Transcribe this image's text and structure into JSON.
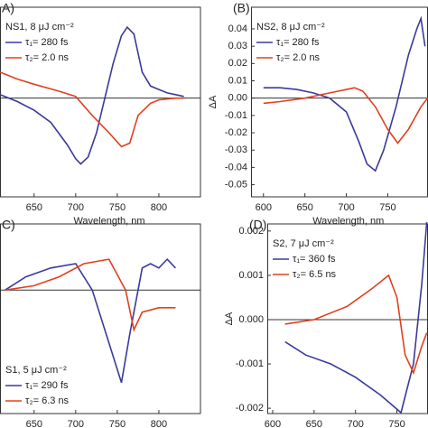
{
  "chart_data": [
    {
      "type": "line",
      "panel_label": "A)",
      "annotation": "NS1, 8 μJ cm⁻²",
      "xlabel": "Wavelength, nm",
      "legend": "upper left",
      "xlim": [
        609,
        850
      ],
      "ylim": [
        -0.057,
        0.0525
      ],
      "xticks": [
        650,
        700,
        750,
        800
      ],
      "series": [
        {
          "name": "τ₁= 280 fs",
          "color": "#3a3a9c",
          "x": [
            609,
            630,
            650,
            670,
            690,
            700,
            706,
            715,
            725,
            735,
            745,
            755,
            762,
            770,
            780,
            790,
            800,
            810,
            820,
            830
          ],
          "values": [
            0.002,
            -0.002,
            -0.007,
            -0.014,
            -0.027,
            -0.035,
            -0.038,
            -0.034,
            -0.02,
            0.0,
            0.02,
            0.036,
            0.041,
            0.037,
            0.015,
            0.007,
            0.005,
            0.003,
            0.002,
            0.001
          ]
        },
        {
          "name": "τ₂= 2.0 ns",
          "color": "#e0401e",
          "x": [
            609,
            630,
            650,
            680,
            700,
            720,
            740,
            755,
            765,
            775,
            790,
            800,
            820,
            830
          ],
          "values": [
            0.015,
            0.011,
            0.008,
            0.004,
            0.001,
            -0.01,
            -0.02,
            -0.028,
            -0.026,
            -0.01,
            -0.003,
            -0.001,
            0.0,
            0.0
          ]
        }
      ]
    },
    {
      "type": "line",
      "panel_label": "(B)",
      "annotation": "NS2, 8 μJ cm⁻²",
      "xlabel": "Wavelength, nm",
      "ylabel": "ΔA",
      "legend": "upper left",
      "xlim": [
        585,
        798
      ],
      "ylim": [
        -0.057,
        0.0525
      ],
      "xticks": [
        600,
        650,
        700,
        750
      ],
      "yticks": [
        -0.05,
        -0.04,
        -0.03,
        -0.02,
        -0.01,
        {
          "value": 0,
          "label": "0.00"
        },
        0.01,
        0.02,
        0.03,
        0.04
      ],
      "series": [
        {
          "name": "τ₁= 280 fs",
          "color": "#3a3a9c",
          "x": [
            600,
            620,
            640,
            660,
            680,
            700,
            715,
            725,
            735,
            745,
            760,
            775,
            785,
            790,
            795
          ],
          "values": [
            0.006,
            0.006,
            0.005,
            0.003,
            0.0,
            -0.008,
            -0.025,
            -0.038,
            -0.042,
            -0.03,
            -0.005,
            0.025,
            0.04,
            0.046,
            0.03
          ]
        },
        {
          "name": "τ₂= 2.0 ns",
          "color": "#e0401e",
          "x": [
            600,
            620,
            650,
            680,
            710,
            720,
            735,
            750,
            762,
            775,
            790,
            798
          ],
          "values": [
            -0.003,
            -0.002,
            0.0,
            0.003,
            0.006,
            0.004,
            -0.005,
            -0.018,
            -0.026,
            -0.018,
            -0.005,
            0.0
          ]
        }
      ]
    },
    {
      "type": "line",
      "panel_label": "C)",
      "annotation": "S1, 5 μJ cm⁻²",
      "xlabel": "Wavelength, nm",
      "legend": "lower left",
      "xlim": [
        609,
        850
      ],
      "ylim": [
        -0.0028,
        0.0015
      ],
      "xticks": [
        650,
        700,
        750,
        800
      ],
      "series": [
        {
          "name": "τ₁= 290 fs",
          "color": "#3a3a9c",
          "x": [
            615,
            640,
            670,
            700,
            720,
            740,
            755,
            765,
            780,
            790,
            800,
            810,
            820
          ],
          "values": [
            0.0,
            0.0003,
            0.0005,
            0.0006,
            0.0,
            -0.0012,
            -0.0021,
            -0.001,
            0.0005,
            0.0006,
            0.0005,
            0.0007,
            0.0005
          ]
        },
        {
          "name": "τ₂= 6.3 ns",
          "color": "#e0401e",
          "x": [
            615,
            650,
            680,
            710,
            740,
            760,
            770,
            780,
            800,
            820
          ],
          "values": [
            0.0,
            0.0001,
            0.0003,
            0.0006,
            0.0007,
            0.0,
            -0.0009,
            -0.0005,
            -0.0004,
            -0.0004
          ]
        }
      ]
    },
    {
      "type": "line",
      "panel_label": "(D)",
      "annotation": "S2, 7 μJ cm⁻²",
      "xlabel": "Wavelength, nm",
      "ylabel": "ΔA",
      "legend": "upper left",
      "xlim": [
        593.5,
        787
      ],
      "ylim": [
        -0.00212,
        0.00216
      ],
      "xticks": [
        600,
        650,
        700,
        750
      ],
      "yticks": [
        -0.002,
        -0.001,
        {
          "value": 0,
          "label": "0.000"
        },
        0.001,
        0.002
      ],
      "series": [
        {
          "name": "τ₁= 360 fs",
          "color": "#3a3a9c",
          "x": [
            615,
            640,
            670,
            700,
            730,
            755,
            770,
            780,
            786
          ],
          "values": [
            -0.0005,
            -0.0008,
            -0.001,
            -0.0013,
            -0.0017,
            -0.0021,
            -0.001,
            0.0008,
            0.0022
          ]
        },
        {
          "name": "τ₂= 6.5 ns",
          "color": "#e0401e",
          "x": [
            615,
            650,
            690,
            720,
            740,
            750,
            760,
            770,
            780,
            786
          ],
          "values": [
            -0.0001,
            0.0,
            0.0003,
            0.0007,
            0.001,
            0.0005,
            -0.0008,
            -0.0012,
            -0.0006,
            -0.0003
          ]
        }
      ]
    }
  ]
}
